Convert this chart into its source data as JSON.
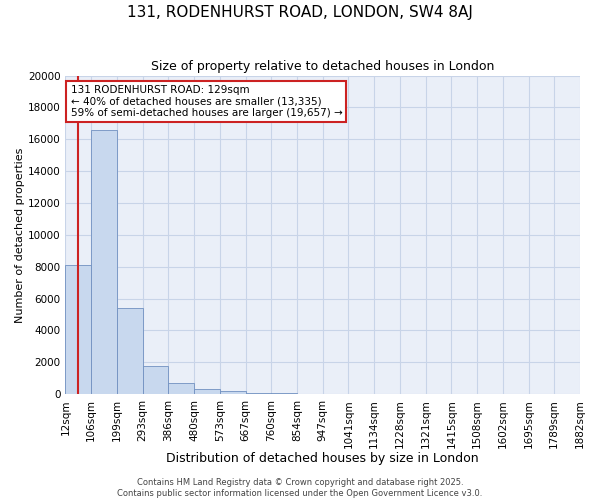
{
  "title": "131, RODENHURST ROAD, LONDON, SW4 8AJ",
  "subtitle": "Size of property relative to detached houses in London",
  "xlabel": "Distribution of detached houses by size in London",
  "ylabel": "Number of detached properties",
  "bar_values": [
    8100,
    16600,
    5400,
    1800,
    700,
    300,
    200,
    100,
    50,
    0,
    0,
    0,
    0,
    0,
    0,
    0,
    0,
    0,
    0,
    0
  ],
  "bar_labels": [
    "12sqm",
    "106sqm",
    "199sqm",
    "293sqm",
    "386sqm",
    "480sqm",
    "573sqm",
    "667sqm",
    "760sqm",
    "854sqm",
    "947sqm",
    "1041sqm",
    "1134sqm",
    "1228sqm",
    "1321sqm",
    "1415sqm",
    "1508sqm",
    "1602sqm",
    "1695sqm",
    "1789sqm",
    "1882sqm"
  ],
  "bar_color": "#c8d8ee",
  "bar_edge_color": "#7090c0",
  "vline_position": 0.5,
  "vline_color": "#cc2222",
  "ylim": [
    0,
    20000
  ],
  "yticks": [
    0,
    2000,
    4000,
    6000,
    8000,
    10000,
    12000,
    14000,
    16000,
    18000,
    20000
  ],
  "annotation_text": "131 RODENHURST ROAD: 129sqm\n← 40% of detached houses are smaller (13,335)\n59% of semi-detached houses are larger (19,657) →",
  "annotation_color": "#cc2222",
  "grid_color": "#c8d4e8",
  "bg_color": "#eaeff8",
  "title_fontsize": 11,
  "subtitle_fontsize": 9,
  "ylabel_fontsize": 8,
  "xlabel_fontsize": 9,
  "tick_fontsize": 7.5,
  "footer_line1": "Contains HM Land Registry data © Crown copyright and database right 2025.",
  "footer_line2": "Contains public sector information licensed under the Open Government Licence v3.0."
}
